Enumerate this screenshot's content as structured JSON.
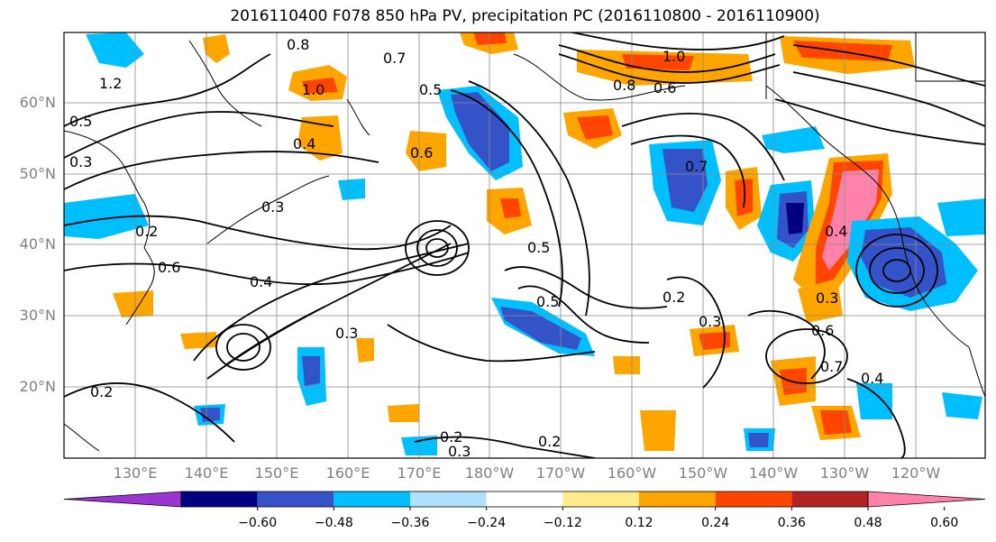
{
  "title": "2016110400 F078 850 hPa PV, precipitation PC (2016110800 - 2016110900)",
  "lat_labels": [
    "60°N",
    "50°N",
    "40°N",
    "30°N",
    "20°N"
  ],
  "lon_labels": [
    "130°E",
    "140°E",
    "150°E",
    "160°E",
    "170°E",
    "180°W",
    "170°W",
    "160°W",
    "150°W",
    "140°W",
    "130°W",
    "120°W"
  ],
  "colorbar": {
    "colors": [
      "#9a36d0",
      "#000080",
      "#3553c8",
      "#00bfff",
      "#b0e2ff",
      "#ffffff",
      "#ffec8b",
      "#ffa500",
      "#ff4500",
      "#b22222",
      "#ff82ab"
    ],
    "ticks": [
      "−0.60",
      "−0.48",
      "−0.36",
      "−0.24",
      "−0.12",
      "0.12",
      "0.24",
      "0.36",
      "0.48",
      "0.60"
    ]
  },
  "contour_labels": [
    "0.8",
    "1.2",
    "1.0",
    "0.5",
    "0.3",
    "0.6",
    "0.4",
    "0.2",
    "0.7",
    "1.0",
    "0.8",
    "0.6",
    "0.5",
    "0.7",
    "0.5",
    "0.3",
    "0.2",
    "0.6",
    "0.4",
    "0.5",
    "0.3",
    "0.2",
    "0.3",
    "0.6",
    "0.7",
    "0.4",
    "0.3",
    "0.2",
    "0.2",
    "0.3",
    "0.4"
  ]
}
